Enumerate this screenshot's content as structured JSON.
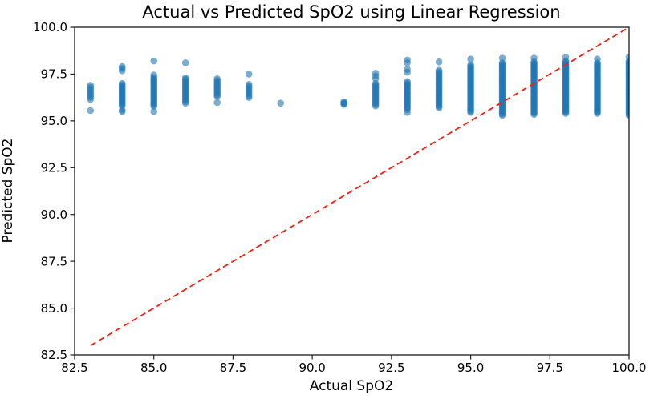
{
  "chart_data": {
    "type": "scatter",
    "title": "Actual vs Predicted SpO2 using Linear Regression",
    "xlabel": "Actual SpO2",
    "ylabel": "Predicted SpO2",
    "xlim": [
      82.5,
      100.0
    ],
    "ylim": [
      82.5,
      100.0
    ],
    "grid": false,
    "legend": "none",
    "x_ticks": [
      {
        "value": 82.5,
        "label": "82.5"
      },
      {
        "value": 85.0,
        "label": "85.0"
      },
      {
        "value": 87.5,
        "label": "87.5"
      },
      {
        "value": 90.0,
        "label": "90.0"
      },
      {
        "value": 92.5,
        "label": "92.5"
      },
      {
        "value": 95.0,
        "label": "95.0"
      },
      {
        "value": 97.5,
        "label": "97.5"
      },
      {
        "value": 100.0,
        "label": "100.0"
      }
    ],
    "y_ticks": [
      {
        "value": 82.5,
        "label": "82.5"
      },
      {
        "value": 85.0,
        "label": "85.0"
      },
      {
        "value": 87.5,
        "label": "87.5"
      },
      {
        "value": 90.0,
        "label": "90.0"
      },
      {
        "value": 92.5,
        "label": "92.5"
      },
      {
        "value": 95.0,
        "label": "95.0"
      },
      {
        "value": 97.5,
        "label": "97.5"
      },
      {
        "value": 100.0,
        "label": "100.0"
      }
    ],
    "point_style": {
      "color": "#1f77b4",
      "opacity": 0.6,
      "radius": 4.3
    },
    "identity_line": {
      "x1": 83.0,
      "y1": 83.0,
      "x2": 100.0,
      "y2": 100.0,
      "color": "#f42015",
      "dash": [
        7.5,
        4.5
      ],
      "width": 1.8
    },
    "series": [
      {
        "name": "predictions",
        "clusters": [
          {
            "x": 83,
            "y_min": 96.15,
            "y_max": 96.9,
            "count": 8,
            "y_extra": [
              95.55
            ]
          },
          {
            "x": 84,
            "y_min": 95.8,
            "y_max": 97.0,
            "count": 18,
            "y_extra": [
              95.5,
              95.58,
              97.68,
              97.8,
              97.9
            ]
          },
          {
            "x": 85,
            "y_min": 95.78,
            "y_max": 97.32,
            "count": 22,
            "y_extra": [
              95.5,
              97.45,
              98.2
            ]
          },
          {
            "x": 86,
            "y_min": 95.95,
            "y_max": 97.3,
            "count": 18,
            "y_extra": [
              98.1
            ]
          },
          {
            "x": 87,
            "y_min": 96.3,
            "y_max": 97.25,
            "count": 12,
            "y_extra": [
              95.98
            ]
          },
          {
            "x": 88,
            "y_min": 96.25,
            "y_max": 96.95,
            "count": 8,
            "y_extra": [
              97.5
            ]
          },
          {
            "x": 89,
            "y_min": 95.95,
            "y_max": 95.95,
            "count": 1,
            "y_extra": []
          },
          {
            "x": 91,
            "y_min": 95.88,
            "y_max": 96.02,
            "count": 4,
            "y_extra": []
          },
          {
            "x": 92,
            "y_min": 95.8,
            "y_max": 97.0,
            "count": 16,
            "y_extra": [
              97.25,
              97.4,
              97.55
            ]
          },
          {
            "x": 93,
            "y_min": 95.6,
            "y_max": 97.1,
            "count": 20,
            "y_extra": [
              95.45,
              97.6,
              97.75,
              98.1,
              98.25
            ]
          },
          {
            "x": 94,
            "y_min": 95.7,
            "y_max": 97.7,
            "count": 26,
            "y_extra": [
              98.15
            ]
          },
          {
            "x": 95,
            "y_min": 95.45,
            "y_max": 98.0,
            "count": 34,
            "y_extra": [
              98.3
            ]
          },
          {
            "x": 96,
            "y_min": 95.3,
            "y_max": 98.1,
            "count": 40,
            "y_extra": [
              98.35
            ]
          },
          {
            "x": 97,
            "y_min": 95.35,
            "y_max": 98.15,
            "count": 42,
            "y_extra": [
              98.35
            ]
          },
          {
            "x": 98,
            "y_min": 95.4,
            "y_max": 98.2,
            "count": 44,
            "y_extra": [
              98.4
            ]
          },
          {
            "x": 99,
            "y_min": 95.4,
            "y_max": 98.1,
            "count": 42,
            "y_extra": [
              98.3
            ]
          },
          {
            "x": 100,
            "y_min": 95.3,
            "y_max": 98.2,
            "count": 42,
            "y_extra": [
              98.4
            ]
          }
        ]
      }
    ],
    "colors": {
      "spine": "#1a1a1a",
      "background": "#ffffff",
      "text": "#000000"
    }
  }
}
